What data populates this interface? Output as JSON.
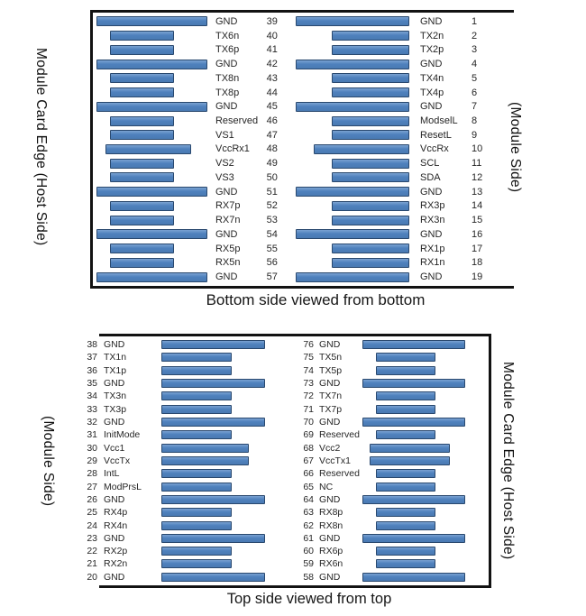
{
  "colors": {
    "pad_fill": "#4F81BD",
    "pad_border": "#29486E",
    "panel_border": "#121212",
    "text": "#262626"
  },
  "top_panel": {
    "caption": "Bottom side viewed from bottom",
    "left_edge_label": "Module Card Edge (Host Side)",
    "right_edge_label": "(Module Side)",
    "left_column": [
      {
        "pin": "39",
        "name": "GND",
        "kind": "gnd"
      },
      {
        "pin": "40",
        "name": "TX6n",
        "kind": "sig"
      },
      {
        "pin": "41",
        "name": "TX6p",
        "kind": "sig"
      },
      {
        "pin": "42",
        "name": "GND",
        "kind": "gnd"
      },
      {
        "pin": "43",
        "name": "TX8n",
        "kind": "sig"
      },
      {
        "pin": "44",
        "name": "TX8p",
        "kind": "sig"
      },
      {
        "pin": "45",
        "name": "GND",
        "kind": "gnd"
      },
      {
        "pin": "46",
        "name": "Reserved",
        "kind": "sig"
      },
      {
        "pin": "47",
        "name": "VS1",
        "kind": "sig"
      },
      {
        "pin": "48",
        "name": "VccRx1",
        "kind": "pwr"
      },
      {
        "pin": "49",
        "name": "VS2",
        "kind": "sig"
      },
      {
        "pin": "50",
        "name": "VS3",
        "kind": "sig"
      },
      {
        "pin": "51",
        "name": "GND",
        "kind": "gnd"
      },
      {
        "pin": "52",
        "name": "RX7p",
        "kind": "sig"
      },
      {
        "pin": "53",
        "name": "RX7n",
        "kind": "sig"
      },
      {
        "pin": "54",
        "name": "GND",
        "kind": "gnd"
      },
      {
        "pin": "55",
        "name": "RX5p",
        "kind": "sig"
      },
      {
        "pin": "56",
        "name": "RX5n",
        "kind": "sig"
      },
      {
        "pin": "57",
        "name": "GND",
        "kind": "gnd"
      }
    ],
    "right_column": [
      {
        "pin": "1",
        "name": "GND",
        "kind": "gnd"
      },
      {
        "pin": "2",
        "name": "TX2n",
        "kind": "sig"
      },
      {
        "pin": "3",
        "name": "TX2p",
        "kind": "sig"
      },
      {
        "pin": "4",
        "name": "GND",
        "kind": "gnd"
      },
      {
        "pin": "5",
        "name": "TX4n",
        "kind": "sig"
      },
      {
        "pin": "6",
        "name": "TX4p",
        "kind": "sig"
      },
      {
        "pin": "7",
        "name": "GND",
        "kind": "gnd"
      },
      {
        "pin": "8",
        "name": "ModselL",
        "kind": "sig"
      },
      {
        "pin": "9",
        "name": "ResetL",
        "kind": "sig"
      },
      {
        "pin": "10",
        "name": "VccRx",
        "kind": "pwr"
      },
      {
        "pin": "11",
        "name": "SCL",
        "kind": "sig"
      },
      {
        "pin": "12",
        "name": "SDA",
        "kind": "sig"
      },
      {
        "pin": "13",
        "name": "GND",
        "kind": "gnd"
      },
      {
        "pin": "14",
        "name": "RX3p",
        "kind": "sig"
      },
      {
        "pin": "15",
        "name": "RX3n",
        "kind": "sig"
      },
      {
        "pin": "16",
        "name": "GND",
        "kind": "gnd"
      },
      {
        "pin": "17",
        "name": "RX1p",
        "kind": "sig"
      },
      {
        "pin": "18",
        "name": "RX1n",
        "kind": "sig"
      },
      {
        "pin": "19",
        "name": "GND",
        "kind": "gnd"
      }
    ]
  },
  "bottom_panel": {
    "caption": "Top side viewed from top",
    "left_edge_label": "(Module Side)",
    "right_edge_label": "Module Card Edge (Host Side)",
    "left_column": [
      {
        "pin": "38",
        "name": "GND",
        "kind": "gnd"
      },
      {
        "pin": "37",
        "name": "TX1n",
        "kind": "sig"
      },
      {
        "pin": "36",
        "name": "TX1p",
        "kind": "sig"
      },
      {
        "pin": "35",
        "name": "GND",
        "kind": "gnd"
      },
      {
        "pin": "34",
        "name": "TX3n",
        "kind": "sig"
      },
      {
        "pin": "33",
        "name": "TX3p",
        "kind": "sig"
      },
      {
        "pin": "32",
        "name": "GND",
        "kind": "gnd"
      },
      {
        "pin": "31",
        "name": "InitMode",
        "kind": "sig"
      },
      {
        "pin": "30",
        "name": "Vcc1",
        "kind": "pwr"
      },
      {
        "pin": "29",
        "name": "VccTx",
        "kind": "pwr"
      },
      {
        "pin": "28",
        "name": "IntL",
        "kind": "sig"
      },
      {
        "pin": "27",
        "name": "ModPrsL",
        "kind": "sig"
      },
      {
        "pin": "26",
        "name": "GND",
        "kind": "gnd"
      },
      {
        "pin": "25",
        "name": "RX4p",
        "kind": "sig"
      },
      {
        "pin": "24",
        "name": "RX4n",
        "kind": "sig"
      },
      {
        "pin": "23",
        "name": "GND",
        "kind": "gnd"
      },
      {
        "pin": "22",
        "name": "RX2p",
        "kind": "sig"
      },
      {
        "pin": "21",
        "name": "RX2n",
        "kind": "sig"
      },
      {
        "pin": "20",
        "name": "GND",
        "kind": "gnd"
      }
    ],
    "right_column": [
      {
        "pin": "76",
        "name": "GND",
        "kind": "gnd"
      },
      {
        "pin": "75",
        "name": "TX5n",
        "kind": "sig"
      },
      {
        "pin": "74",
        "name": "TX5p",
        "kind": "sig"
      },
      {
        "pin": "73",
        "name": "GND",
        "kind": "gnd"
      },
      {
        "pin": "72",
        "name": "TX7n",
        "kind": "sig"
      },
      {
        "pin": "71",
        "name": "TX7p",
        "kind": "sig"
      },
      {
        "pin": "70",
        "name": "GND",
        "kind": "gnd"
      },
      {
        "pin": "69",
        "name": "Reserved",
        "kind": "sig"
      },
      {
        "pin": "68",
        "name": "Vcc2",
        "kind": "pwr"
      },
      {
        "pin": "67",
        "name": "VccTx1",
        "kind": "pwr"
      },
      {
        "pin": "66",
        "name": "Reserved",
        "kind": "sig"
      },
      {
        "pin": "65",
        "name": "NC",
        "kind": "sig"
      },
      {
        "pin": "64",
        "name": "GND",
        "kind": "gnd"
      },
      {
        "pin": "63",
        "name": "RX8p",
        "kind": "sig"
      },
      {
        "pin": "62",
        "name": "RX8n",
        "kind": "sig"
      },
      {
        "pin": "61",
        "name": "GND",
        "kind": "gnd"
      },
      {
        "pin": "60",
        "name": "RX6p",
        "kind": "sig"
      },
      {
        "pin": "59",
        "name": "RX6n",
        "kind": "sig"
      },
      {
        "pin": "58",
        "name": "GND",
        "kind": "gnd"
      }
    ]
  }
}
